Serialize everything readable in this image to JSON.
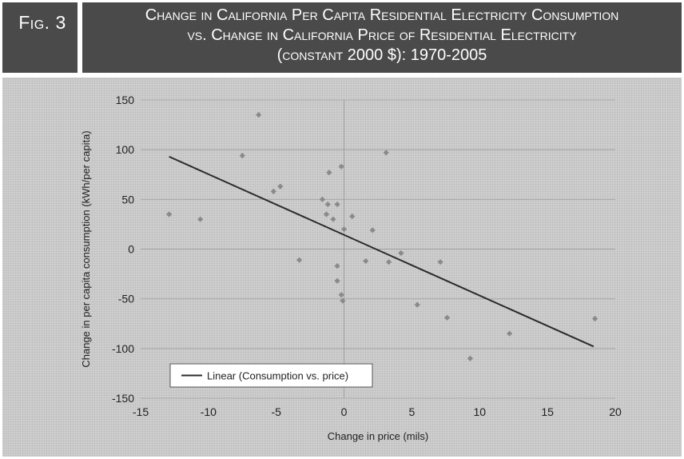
{
  "figure": {
    "label": "Fig. 3",
    "title": "Change in California Per Capita Residential Electricity Consumption\nvs. Change in California Price of Residential Electricity\n(constant 2000 $): 1970-2005"
  },
  "chart_data": {
    "type": "scatter",
    "xlabel": "Change in price (mils)",
    "ylabel": "Change in per capita consumption (kWh/per capita)",
    "xlim": [
      -15,
      20
    ],
    "ylim": [
      -150,
      150
    ],
    "xticks": [
      -15,
      -10,
      -5,
      0,
      5,
      10,
      15,
      20
    ],
    "yticks": [
      -150,
      -100,
      -50,
      0,
      50,
      100,
      150
    ],
    "grid": true,
    "legend": {
      "placement": "bottom-left",
      "entries": [
        "Linear (Consumption vs. price)"
      ]
    },
    "points": [
      {
        "x": -12.9,
        "y": 35
      },
      {
        "x": -10.6,
        "y": 30
      },
      {
        "x": -7.5,
        "y": 94
      },
      {
        "x": -6.3,
        "y": 135
      },
      {
        "x": -5.2,
        "y": 58
      },
      {
        "x": -4.7,
        "y": 63
      },
      {
        "x": -3.3,
        "y": -11
      },
      {
        "x": -1.6,
        "y": 50
      },
      {
        "x": -1.3,
        "y": 35
      },
      {
        "x": -1.2,
        "y": 45
      },
      {
        "x": -1.1,
        "y": 77
      },
      {
        "x": -0.8,
        "y": 30
      },
      {
        "x": -0.5,
        "y": 45
      },
      {
        "x": -0.5,
        "y": -17
      },
      {
        "x": -0.5,
        "y": -32
      },
      {
        "x": -0.2,
        "y": 83
      },
      {
        "x": -0.2,
        "y": -46
      },
      {
        "x": -0.1,
        "y": -52
      },
      {
        "x": 0.0,
        "y": 20
      },
      {
        "x": 0.6,
        "y": 33
      },
      {
        "x": 1.6,
        "y": -12
      },
      {
        "x": 2.1,
        "y": 19
      },
      {
        "x": 3.1,
        "y": 97
      },
      {
        "x": 3.3,
        "y": -13
      },
      {
        "x": 4.2,
        "y": -4
      },
      {
        "x": 5.4,
        "y": -56
      },
      {
        "x": 7.1,
        "y": -13
      },
      {
        "x": 7.6,
        "y": -69
      },
      {
        "x": 9.3,
        "y": -110
      },
      {
        "x": 12.2,
        "y": -85
      },
      {
        "x": 18.5,
        "y": -70
      }
    ],
    "trendline": {
      "name": "Linear (Consumption vs. price)",
      "type": "linear",
      "x": [
        -12.9,
        18.4
      ],
      "y": [
        93,
        -98
      ]
    },
    "colors": {
      "points": "#8a8a8a",
      "trendline": "#2b2b2b",
      "header": "#4a4a4a",
      "background": "#cfcfcf",
      "grid": "#a8a8a8"
    }
  }
}
